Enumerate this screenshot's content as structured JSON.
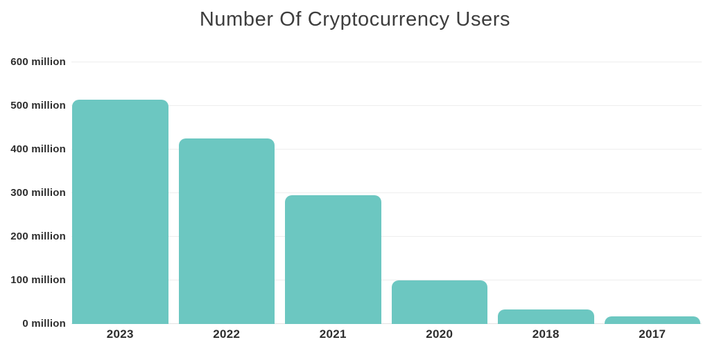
{
  "header": {
    "title": "Number Of Cryptocurrency Users"
  },
  "colors": {
    "bar": "#6cc7c1",
    "gridline": "#ededed",
    "baseline": "#e2e2e2",
    "axis_text": "#2d2d2d",
    "title_text": "#3d3d3d",
    "background": "#ffffff"
  },
  "chart_data": {
    "type": "bar",
    "title": "Number Of Cryptocurrency Users",
    "categories": [
      "2023",
      "2022",
      "2021",
      "2020",
      "2018",
      "2017"
    ],
    "values": [
      515,
      425,
      295,
      100,
      33,
      18
    ],
    "value_unit": "million users",
    "xlabel": "",
    "ylabel": "",
    "ylim": [
      0,
      600
    ],
    "yticks": [
      0,
      100,
      200,
      300,
      400,
      500,
      600
    ],
    "ytick_labels": [
      "0 million",
      "100 million",
      "200 million",
      "300 million",
      "400 million",
      "500 million",
      "600 million"
    ],
    "grid": true,
    "legend": false,
    "bar_color": "#6cc7c1"
  }
}
